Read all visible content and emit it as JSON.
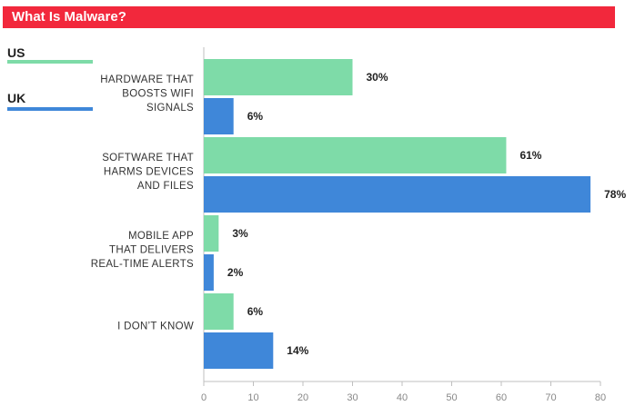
{
  "chart_data": {
    "type": "bar",
    "orientation": "horizontal",
    "title": "What Is Malware?",
    "categories": [
      [
        "HARDWARE THAT",
        "BOOSTS WIFI",
        "SIGNALS"
      ],
      [
        "SOFTWARE THAT",
        "HARMS DEVICES",
        "AND FILES"
      ],
      [
        "MOBILE APP",
        "THAT DELIVERS",
        "REAL-TIME ALERTS"
      ],
      [
        "I DON’T KNOW"
      ]
    ],
    "series": [
      {
        "name": "US",
        "color": "#7edba8",
        "values": [
          30,
          61,
          3,
          6
        ]
      },
      {
        "name": "UK",
        "color": "#3f87d9",
        "values": [
          6,
          78,
          2,
          14
        ]
      }
    ],
    "value_suffix": "%",
    "xlim": [
      0,
      80
    ],
    "xticks": [
      0,
      10,
      20,
      30,
      40,
      50,
      60,
      70,
      80
    ],
    "legend_position": "left",
    "grid": false
  },
  "colors": {
    "title_bg": "#f2283c"
  }
}
